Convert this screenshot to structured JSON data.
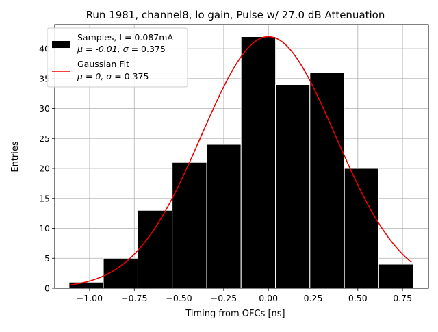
{
  "chart_data": {
    "type": "bar",
    "title": "Run 1981, channel8, lo gain, Pulse w/ 27.0 dB Attenuation",
    "xlabel": "Timing from OFCs [ns]",
    "ylabel": "Entries",
    "xlim": [
      -1.195,
      0.895
    ],
    "ylim": [
      0,
      44
    ],
    "grid": true,
    "xticks": [
      -1.0,
      -0.75,
      -0.5,
      -0.25,
      0.0,
      0.25,
      0.5,
      0.75
    ],
    "xtick_labels": [
      "−1.00",
      "−0.75",
      "−0.50",
      "−0.25",
      "0.00",
      "0.25",
      "0.50",
      "0.75"
    ],
    "yticks": [
      0,
      5,
      10,
      15,
      20,
      25,
      30,
      35,
      40
    ],
    "ytick_labels": [
      "0",
      "5",
      "10",
      "15",
      "20",
      "25",
      "30",
      "35",
      "40"
    ],
    "histogram": {
      "name": "Samples",
      "bin_edges": [
        -1.115,
        -0.923,
        -0.73,
        -0.538,
        -0.345,
        -0.153,
        0.04,
        0.232,
        0.425,
        0.617,
        0.81
      ],
      "counts": [
        1,
        5,
        13,
        21,
        24,
        42,
        34,
        36,
        20,
        4
      ],
      "color": "#000000",
      "edgecolor": "#ffffff"
    },
    "fit": {
      "name": "Gaussian Fit",
      "mu": 0,
      "sigma": 0.375,
      "amplitude": 42,
      "x_range": [
        -1.115,
        0.8
      ],
      "color": "#ee0000"
    },
    "legend": {
      "position": "upper-left",
      "entries": [
        {
          "line1": "Samples, I = 0.087mA",
          "line2_prefix": "μ = -0.01, ",
          "line2_sigma": "σ",
          "line2_suffix": " = 0.375"
        },
        {
          "line1": "Gaussian Fit",
          "line2_prefix": "μ = 0, ",
          "line2_sigma": "σ",
          "line2_suffix": " = 0.375"
        }
      ]
    }
  }
}
